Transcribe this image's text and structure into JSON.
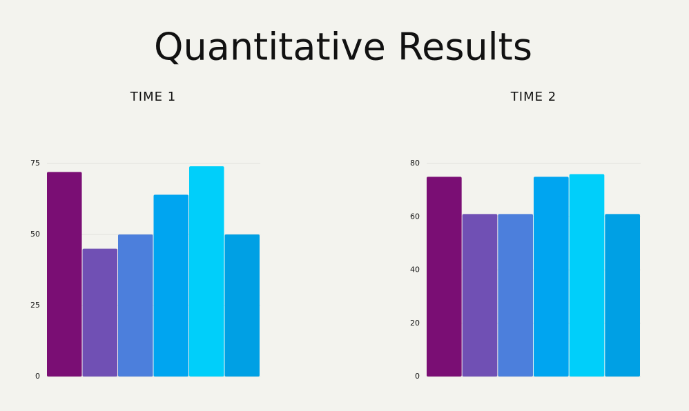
{
  "title": "Quantitative Results",
  "chart_data": [
    {
      "type": "bar",
      "title": "TIME 1",
      "categories": [
        null,
        null,
        null,
        null,
        null,
        null
      ],
      "values": [
        72,
        45,
        50,
        64,
        74,
        50
      ],
      "colors": [
        "#7a0e74",
        "#7050b4",
        "#4c7fdc",
        "#00a5f0",
        "#00cffa",
        "#00a0e4"
      ],
      "ylim": [
        0,
        75
      ],
      "yticks": [
        0,
        25,
        50,
        75
      ],
      "grid": true
    },
    {
      "type": "bar",
      "title": "TIME 2",
      "categories": [
        null,
        null,
        null,
        null,
        null,
        null
      ],
      "values": [
        75,
        61,
        61,
        75,
        76,
        61
      ],
      "colors": [
        "#7a0e74",
        "#7050b4",
        "#4c7fdc",
        "#00a5f0",
        "#00cffa",
        "#00a0e4"
      ],
      "ylim": [
        0,
        80
      ],
      "yticks": [
        0,
        20,
        40,
        60,
        80
      ],
      "grid": true
    }
  ]
}
